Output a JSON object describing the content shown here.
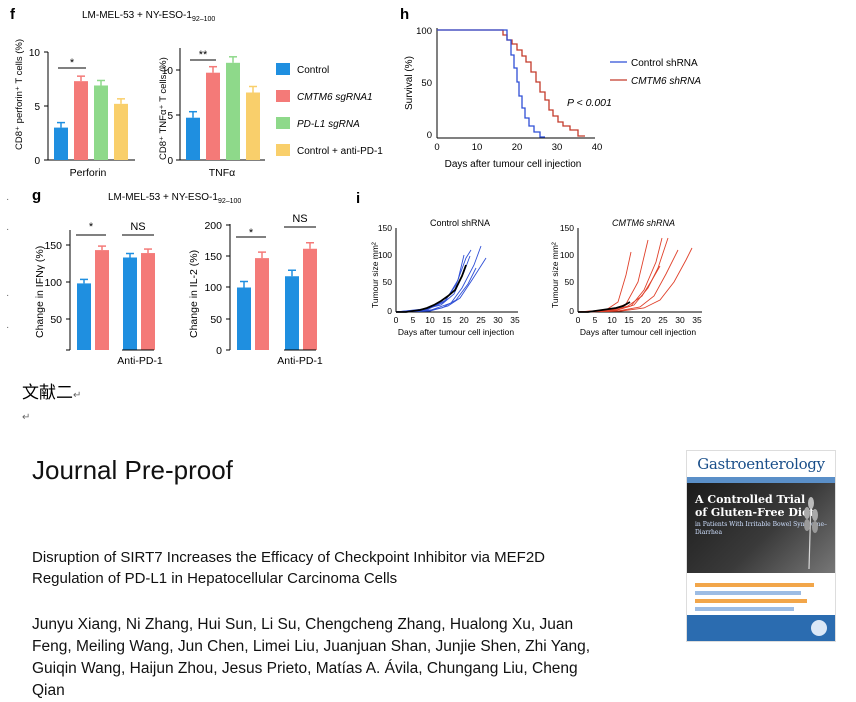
{
  "panel_f": {
    "letter": "f",
    "condition": "LM-MEL-53 + NY-ESO-1",
    "condition_sub": "92–100",
    "left": {
      "ylabel": "CD8⁺ perforin⁺ T cells (%)",
      "xlabel": "Perforin",
      "ticks": [
        "0",
        "5",
        "10"
      ],
      "sig": "*",
      "values": [
        3.0,
        7.3,
        6.9,
        5.2
      ]
    },
    "right": {
      "ylabel": "CD8⁺ TNFα⁺ T cells (%)",
      "xlabel": "TNFα",
      "ticks": [
        "0",
        "5",
        "10"
      ],
      "sig": "**",
      "values": [
        4.7,
        9.7,
        10.8,
        7.5
      ]
    },
    "legend": [
      "Control",
      "CMTM6 sgRNA1",
      "PD-L1 sgRNA",
      "Control + anti-PD-1"
    ]
  },
  "panel_g": {
    "letter": "g",
    "condition": "LM-MEL-53 + NY-ESO-1",
    "condition_sub": "92–100",
    "left": {
      "ylabel": "Change in IFNγ (%)",
      "ticks": [
        "50",
        "100",
        "150"
      ],
      "sig1": "*",
      "sig2": "NS",
      "xlabel": "Anti-PD-1",
      "values": [
        100,
        145,
        135,
        141
      ]
    },
    "right": {
      "ylabel": "Change in IL-2 (%)",
      "ticks": [
        "0",
        "50",
        "100",
        "150",
        "200"
      ],
      "sig1": "*",
      "sig2": "NS",
      "xlabel": "Anti-PD-1",
      "values": [
        100,
        147,
        118,
        162
      ]
    }
  },
  "panel_h": {
    "letter": "h",
    "ylabel": "Survival (%)",
    "xlabel": "Days after tumour cell injection",
    "yticks": [
      "0",
      "50",
      "100"
    ],
    "xticks": [
      "0",
      "10",
      "20",
      "30",
      "40"
    ],
    "pvalue": "P < 0.001",
    "legend": [
      "Control shRNA",
      "CMTM6 shRNA"
    ]
  },
  "panel_i": {
    "letter": "i",
    "left_title": "Control shRNA",
    "right_title": "CMTM6 shRNA",
    "ylabel": "Tumour size mm²",
    "xlabel": "Days after tumour cell injection",
    "yticks": [
      "0",
      "50",
      "100",
      "150"
    ],
    "xticks": [
      "0",
      "5",
      "10",
      "15",
      "20",
      "25",
      "30",
      "35"
    ]
  },
  "doc": {
    "cjk_heading": "文献二",
    "return_mark": "↵",
    "journal_label": "Journal Pre-proof",
    "title_line1": "Disruption of SIRT7 Increases the Efficacy of Checkpoint Inhibitor via MEF2D",
    "title_line2": "Regulation of PD-L1 in Hepatocellular Carcinoma Cells",
    "authors_line1": "Junyu Xiang, Ni Zhang, Hui Sun, Li Su, Chengcheng Zhang, Hualong Xu, Juan",
    "authors_line2": "Feng, Meiling Wang, Jun Chen, Limei Liu, Juanjuan Shan, Junjie Shen, Zhi Yang,",
    "authors_line3": "Guiqin Wang, Haijun Zhou, Jesus Prieto, Matías A. Ávila, Chungang Liu, Cheng",
    "authors_line4": "Qian"
  },
  "cover": {
    "journal": "Gastroenterology",
    "headline1": "A Controlled Trial",
    "headline2": "of Gluten-Free Diet",
    "subhead": "in Patients With Irritable Bowel Syndrome–Diarrhea"
  },
  "colors": {
    "blue": "#1f8fe0",
    "red": "#f47a78",
    "green": "#8ed98a",
    "yellow": "#f9cf6b",
    "surv_blue": "#2f4fd6",
    "surv_red": "#c43a2a"
  }
}
